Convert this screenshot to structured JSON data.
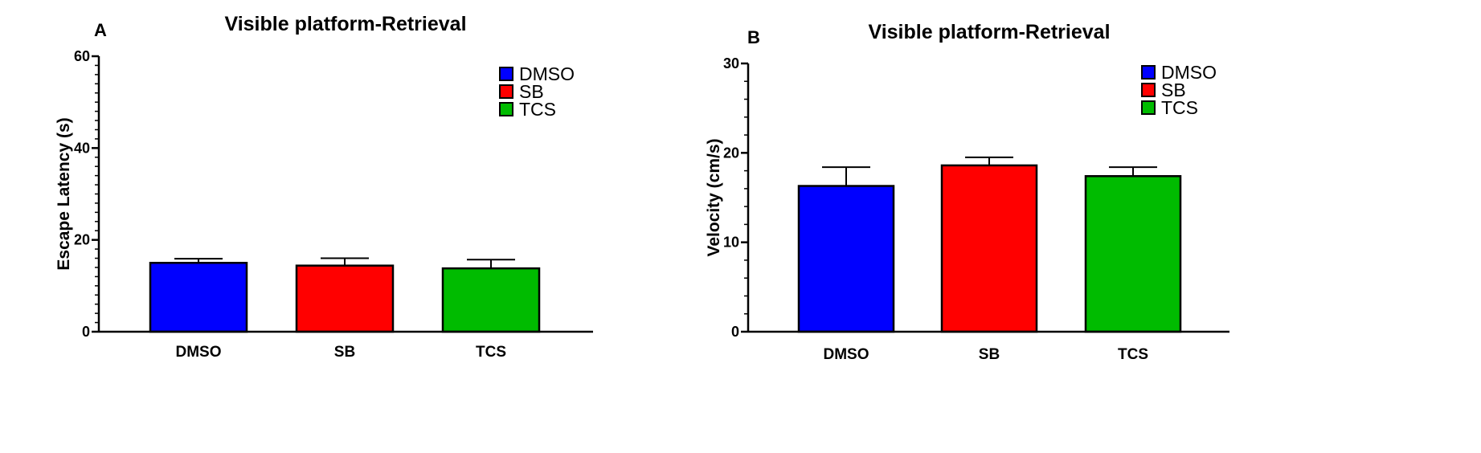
{
  "chart_data": [
    {
      "panel": "A",
      "type": "bar",
      "title": "Visible platform-Retrieval",
      "xlabel": "",
      "ylabel": "Escape Latency (s)",
      "ylim": [
        0,
        60
      ],
      "yticks": [
        0,
        20,
        40,
        60
      ],
      "categories": [
        "DMSO",
        "SB",
        "TCS"
      ],
      "values": [
        15.0,
        14.4,
        13.8
      ],
      "errors": [
        0.9,
        1.6,
        1.9
      ],
      "colors": [
        "#0000ff",
        "#ff0000",
        "#00bb00"
      ],
      "legend": [
        "DMSO",
        "SB",
        "TCS"
      ],
      "legend_position": "top-right",
      "grid": false
    },
    {
      "panel": "B",
      "type": "bar",
      "title": "Visible platform-Retrieval",
      "xlabel": "",
      "ylabel": "Velocity (cm/s)",
      "ylim": [
        0,
        30
      ],
      "yticks": [
        0,
        10,
        20,
        30
      ],
      "categories": [
        "DMSO",
        "SB",
        "TCS"
      ],
      "values": [
        16.3,
        18.6,
        17.4
      ],
      "errors": [
        2.1,
        0.9,
        1.0
      ],
      "colors": [
        "#0000ff",
        "#ff0000",
        "#00bb00"
      ],
      "legend": [
        "DMSO",
        "SB",
        "TCS"
      ],
      "legend_position": "top-right",
      "grid": false
    }
  ]
}
